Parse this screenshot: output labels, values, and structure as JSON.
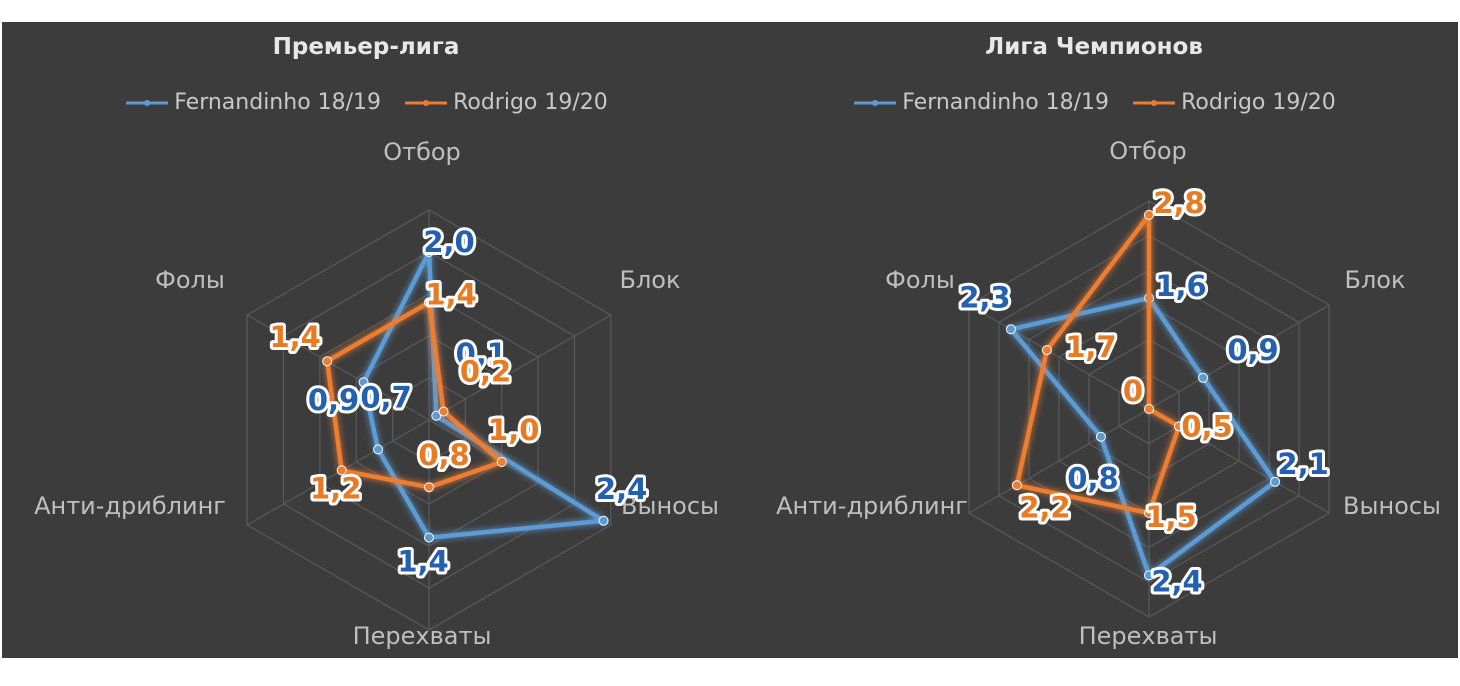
{
  "colors": {
    "series1": "#5b9bd5",
    "series1_label": "#2460b0",
    "series2": "#ed7d31",
    "series2_label": "#e87a22"
  },
  "chart_data": [
    {
      "type": "radar",
      "title": "Премьер-лига",
      "axes": [
        "Отбор",
        "Блок",
        "Выносы",
        "Перехваты",
        "Анти-дриблинг",
        "Фолы"
      ],
      "rmax": 2.5,
      "grid_levels": 5,
      "legend_position": "top",
      "series": [
        {
          "name": "Fernandinho 18/19",
          "values": [
            2.0,
            0.1,
            2.4,
            1.4,
            0.7,
            0.9
          ],
          "labels": [
            "2,0",
            "0,1",
            "2,4",
            "1,4",
            "0,7",
            "0,9"
          ]
        },
        {
          "name": "Rodrigo 19/20",
          "values": [
            1.4,
            0.2,
            1.0,
            0.8,
            1.2,
            1.4
          ],
          "labels": [
            "1,4",
            "0,2",
            "1,0",
            "0,8",
            "1,2",
            "1,4"
          ]
        }
      ]
    },
    {
      "type": "radar",
      "title": "Лига Чемпионов",
      "axes": [
        "Отбор",
        "Блок",
        "Выносы",
        "Перехваты",
        "Анти-дриблинг",
        "Фолы"
      ],
      "rmax": 3.0,
      "grid_levels": 6,
      "legend_position": "top",
      "series": [
        {
          "name": "Fernandinho 18/19",
          "values": [
            1.6,
            0.9,
            2.1,
            2.4,
            0.8,
            2.3
          ],
          "labels": [
            "1,6",
            "0,9",
            "2,1",
            "2,4",
            "0,8",
            "2,3"
          ]
        },
        {
          "name": "Rodrigo 19/20",
          "values": [
            2.8,
            0,
            0.5,
            1.5,
            2.2,
            1.7
          ],
          "labels": [
            "2,8",
            "0",
            "0,5",
            "1,5",
            "2,2",
            "1,7"
          ]
        }
      ]
    }
  ]
}
